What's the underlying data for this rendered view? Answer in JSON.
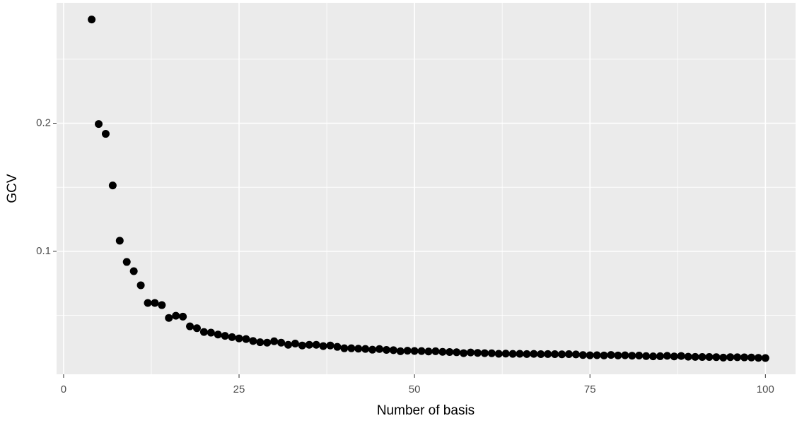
{
  "chart_data": {
    "type": "scatter",
    "x_label": "Number of basis",
    "y_label": "GCV",
    "x": [
      4,
      5,
      6,
      7,
      8,
      9,
      10,
      11,
      12,
      13,
      14,
      15,
      16,
      17,
      18,
      19,
      20,
      21,
      22,
      23,
      24,
      25,
      26,
      27,
      28,
      29,
      30,
      31,
      32,
      33,
      34,
      35,
      36,
      37,
      38,
      39,
      40,
      41,
      42,
      43,
      44,
      45,
      46,
      47,
      48,
      49,
      50,
      51,
      52,
      53,
      54,
      55,
      56,
      57,
      58,
      59,
      60,
      61,
      62,
      63,
      64,
      65,
      66,
      67,
      68,
      69,
      70,
      71,
      72,
      73,
      74,
      75,
      76,
      77,
      78,
      79,
      80,
      81,
      82,
      83,
      84,
      85,
      86,
      87,
      88,
      89,
      90,
      91,
      92,
      93,
      94,
      95,
      96,
      97,
      98,
      99,
      100
    ],
    "values": [
      0.281,
      0.1994,
      0.1917,
      0.1514,
      0.1083,
      0.0917,
      0.0845,
      0.0735,
      0.0597,
      0.0597,
      0.058,
      0.048,
      0.0497,
      0.049,
      0.0414,
      0.04,
      0.037,
      0.0365,
      0.035,
      0.034,
      0.033,
      0.032,
      0.0315,
      0.03,
      0.029,
      0.0287,
      0.0298,
      0.0287,
      0.027,
      0.028,
      0.0265,
      0.027,
      0.027,
      0.026,
      0.0265,
      0.0254,
      0.0243,
      0.0243,
      0.024,
      0.0238,
      0.0232,
      0.0237,
      0.023,
      0.0228,
      0.022,
      0.0224,
      0.0222,
      0.0221,
      0.0218,
      0.022,
      0.0215,
      0.0214,
      0.0212,
      0.0205,
      0.021,
      0.0207,
      0.0205,
      0.0204,
      0.02,
      0.0201,
      0.0199,
      0.02,
      0.0198,
      0.0199,
      0.0197,
      0.0198,
      0.0197,
      0.0196,
      0.0197,
      0.0195,
      0.019,
      0.0188,
      0.0189,
      0.0187,
      0.0191,
      0.0187,
      0.0188,
      0.0185,
      0.0186,
      0.0182,
      0.018,
      0.0181,
      0.0184,
      0.0179,
      0.0183,
      0.0177,
      0.0176,
      0.0175,
      0.0175,
      0.0174,
      0.017,
      0.0174,
      0.0173,
      0.0172,
      0.0171,
      0.0168,
      0.0167
    ],
    "color": "#000000",
    "xlim": [
      -1,
      104.3
    ],
    "ylim": [
      0.004,
      0.294
    ],
    "xticks": [
      0,
      25,
      50,
      75,
      100
    ],
    "yticks": [
      0.1,
      0.2
    ],
    "x_minor_grid": [
      12.5,
      37.5,
      62.5,
      87.5
    ],
    "y_minor_grid": [
      0.05,
      0.15,
      0.25
    ],
    "grid": true,
    "panel_color": "#ebebeb"
  }
}
